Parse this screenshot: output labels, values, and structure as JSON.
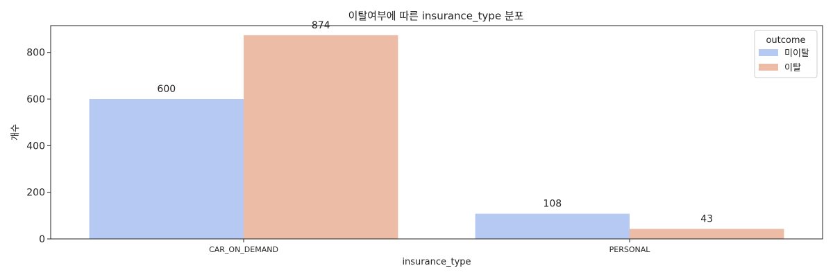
{
  "chart_data": {
    "type": "bar",
    "title": "이탈여부에 따른 insurance_type 분포",
    "xlabel": "insurance_type",
    "ylabel": "개수",
    "categories": [
      "CAR_ON_DEMAND",
      "PERSONAL"
    ],
    "series": [
      {
        "name": "미이탈",
        "values": [
          600,
          108
        ],
        "color": "#b5c9f3"
      },
      {
        "name": "이탈",
        "values": [
          874,
          43
        ],
        "color": "#ecbca6"
      }
    ],
    "ylim": [
      0,
      915
    ],
    "yticks": [
      0,
      200,
      400,
      600,
      800
    ],
    "grid": false,
    "legend": {
      "title": "outcome",
      "position": "top-right"
    }
  }
}
